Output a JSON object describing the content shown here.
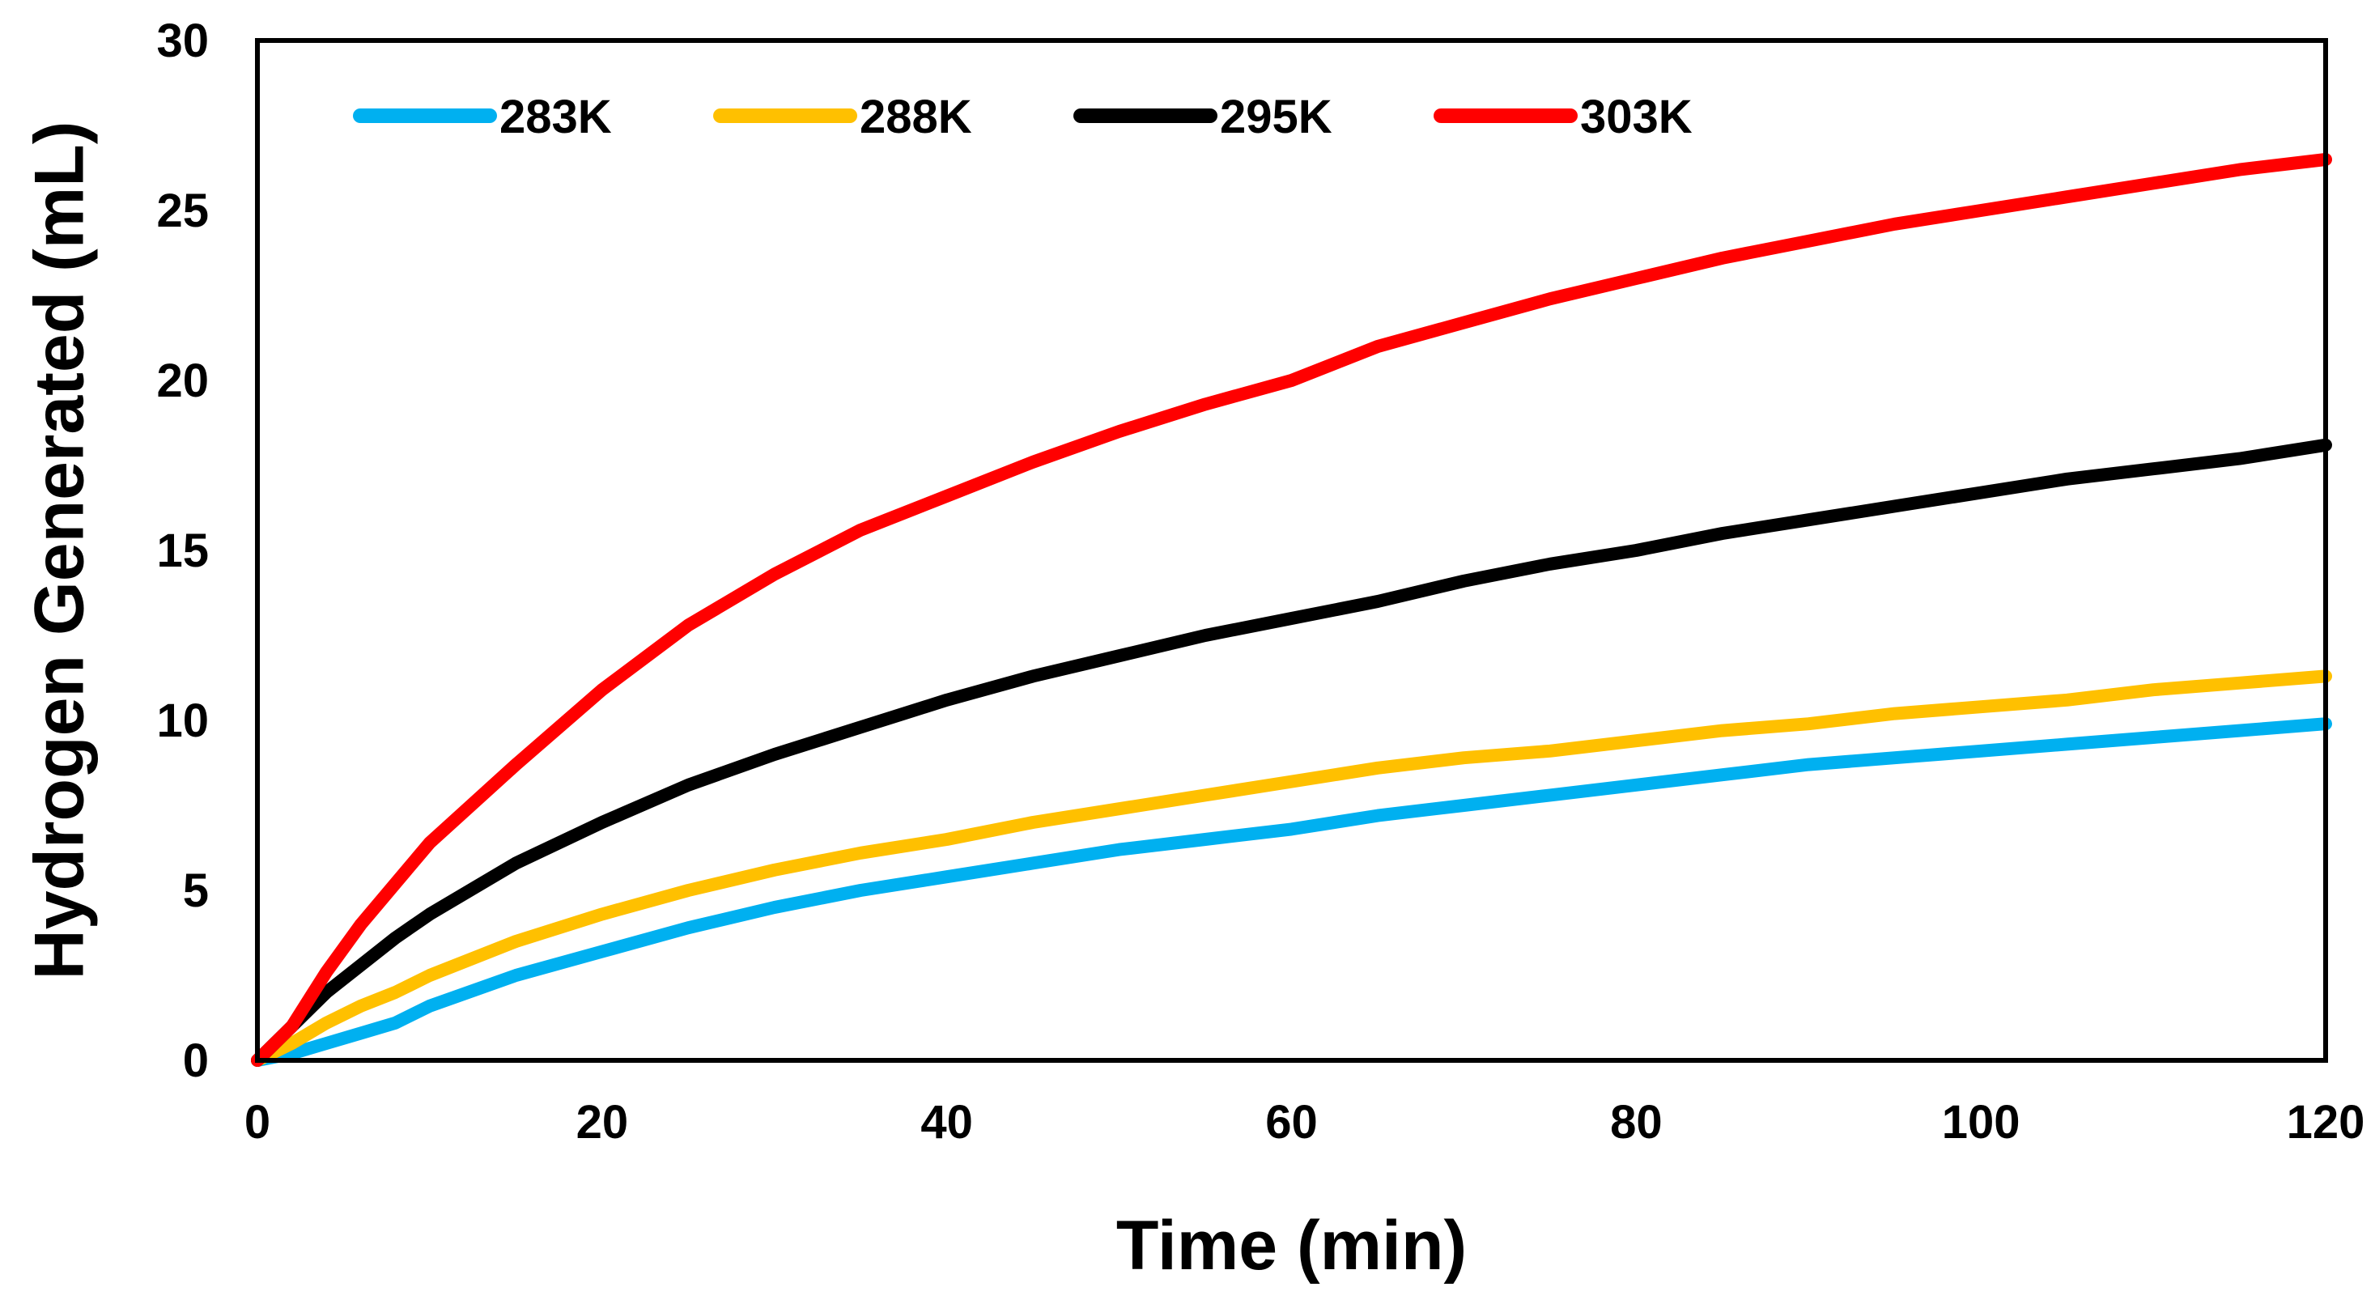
{
  "chart_data": {
    "type": "line",
    "title": "",
    "xlabel": "Time (min)",
    "ylabel": "Hydrogen Generated (mL)",
    "xlim": [
      0,
      120
    ],
    "ylim": [
      0,
      30
    ],
    "xticks": [
      0,
      20,
      40,
      60,
      80,
      100,
      120
    ],
    "yticks": [
      0,
      5,
      10,
      15,
      20,
      25,
      30
    ],
    "x_tick_labels": [
      "0",
      "20",
      "40",
      "60",
      "80",
      "100",
      "120"
    ],
    "y_tick_labels": [
      "0",
      "5",
      "10",
      "15",
      "20",
      "25",
      "30"
    ],
    "grid": false,
    "legend_position": "top",
    "x": [
      0,
      2,
      4,
      6,
      8,
      10,
      15,
      20,
      25,
      30,
      35,
      40,
      45,
      50,
      55,
      60,
      65,
      70,
      75,
      80,
      85,
      90,
      95,
      100,
      105,
      110,
      115,
      120
    ],
    "series": [
      {
        "name": "283K",
        "color": "#00B0F0",
        "values": [
          0,
          0.2,
          0.5,
          0.8,
          1.1,
          1.6,
          2.5,
          3.2,
          3.9,
          4.5,
          5.0,
          5.4,
          5.8,
          6.2,
          6.5,
          6.8,
          7.2,
          7.5,
          7.8,
          8.1,
          8.4,
          8.7,
          8.9,
          9.1,
          9.3,
          9.5,
          9.7,
          9.9
        ]
      },
      {
        "name": "288K",
        "color": "#FFC000",
        "values": [
          0,
          0.5,
          1.1,
          1.6,
          2.0,
          2.5,
          3.5,
          4.3,
          5.0,
          5.6,
          6.1,
          6.5,
          7.0,
          7.4,
          7.8,
          8.2,
          8.6,
          8.9,
          9.1,
          9.4,
          9.7,
          9.9,
          10.2,
          10.4,
          10.6,
          10.9,
          11.1,
          11.3
        ]
      },
      {
        "name": "295K",
        "color": "#000000",
        "values": [
          0,
          1.0,
          2.0,
          2.8,
          3.6,
          4.3,
          5.8,
          7.0,
          8.1,
          9.0,
          9.8,
          10.6,
          11.3,
          11.9,
          12.5,
          13.0,
          13.5,
          14.1,
          14.6,
          15.0,
          15.5,
          15.9,
          16.3,
          16.7,
          17.1,
          17.4,
          17.7,
          18.1
        ]
      },
      {
        "name": "303K",
        "color": "#FF0000",
        "values": [
          0,
          1.0,
          2.6,
          4.0,
          5.2,
          6.4,
          8.7,
          10.9,
          12.8,
          14.3,
          15.6,
          16.6,
          17.6,
          18.5,
          19.3,
          20.0,
          21.0,
          21.7,
          22.4,
          23.0,
          23.6,
          24.1,
          24.6,
          25.0,
          25.4,
          25.8,
          26.2,
          26.5
        ]
      }
    ]
  }
}
